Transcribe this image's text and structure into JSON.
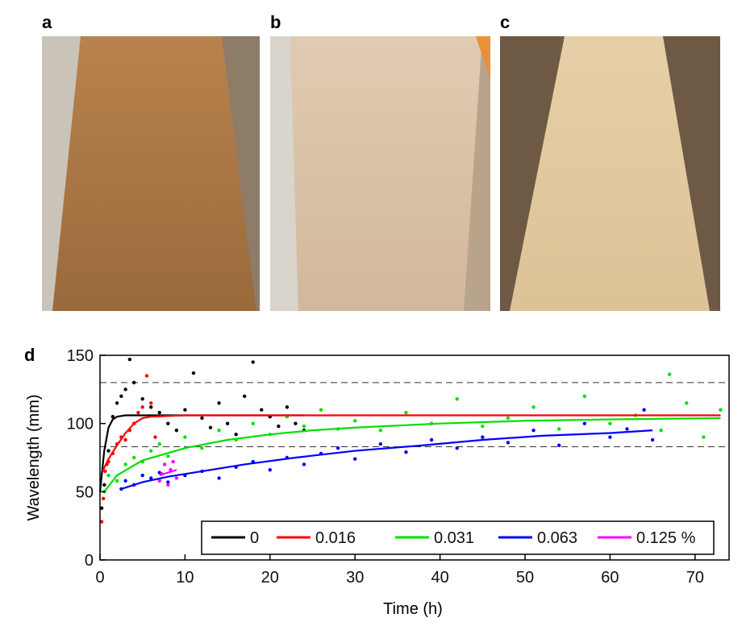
{
  "photos": [
    {
      "label": "a"
    },
    {
      "label": "b"
    },
    {
      "label": "c"
    }
  ],
  "chart_data": {
    "type": "scatter",
    "panel_label": "d",
    "xlabel": "Time (h)",
    "ylabel": "Wavelength (mm)",
    "xlim": [
      0,
      74
    ],
    "ylim": [
      0,
      150
    ],
    "xticks": [
      0,
      10,
      20,
      30,
      40,
      50,
      60,
      70
    ],
    "yticks": [
      0,
      50,
      100,
      150
    ],
    "hlines": [
      130,
      83
    ],
    "legend": "lower right",
    "series": [
      {
        "name": "0",
        "color": "#000000",
        "x": [
          0.2,
          0.5,
          1,
          1.5,
          2,
          2.5,
          3,
          3.5,
          4,
          5,
          6,
          7,
          8,
          9,
          10,
          11,
          12,
          13,
          14,
          15,
          16,
          17,
          18,
          19,
          20,
          21,
          22,
          23,
          24
        ],
        "values": [
          38,
          55,
          80,
          105,
          115,
          120,
          125,
          147,
          130,
          118,
          112,
          108,
          100,
          95,
          110,
          137,
          104,
          97,
          115,
          100,
          92,
          120,
          145,
          110,
          105,
          98,
          112,
          100,
          95
        ],
        "fit_x": [
          0,
          0.5,
          1,
          1.5,
          2,
          3,
          5,
          10,
          24
        ],
        "fit_values": [
          50,
          80,
          97,
          103,
          105,
          106,
          106,
          106,
          106
        ]
      },
      {
        "name": "0.016",
        "color": "#ff0000",
        "x": [
          0.2,
          0.4,
          0.6,
          0.8,
          1,
          1.5,
          2,
          2.5,
          3,
          3.5,
          4,
          4.5,
          5,
          5.5,
          6,
          6.5
        ],
        "values": [
          28,
          45,
          65,
          70,
          72,
          78,
          85,
          90,
          88,
          95,
          100,
          108,
          112,
          135,
          115,
          90
        ],
        "fit_x": [
          0.3,
          1,
          2,
          3,
          4,
          5,
          6,
          10,
          30,
          73
        ],
        "fit_values": [
          65,
          74,
          84,
          93,
          100,
          104,
          105,
          106,
          106,
          106
        ]
      },
      {
        "name": "0.031",
        "color": "#00e000",
        "x": [
          0.5,
          1,
          2,
          3,
          4,
          5,
          6,
          7,
          8,
          10,
          12,
          14,
          16,
          18,
          20,
          22,
          24,
          26,
          28,
          30,
          33,
          36,
          39,
          42,
          45,
          48,
          51,
          54,
          57,
          60,
          63,
          66,
          67,
          69,
          71,
          73
        ],
        "values": [
          50,
          62,
          58,
          70,
          75,
          72,
          80,
          85,
          76,
          90,
          82,
          95,
          88,
          100,
          92,
          105,
          98,
          110,
          96,
          102,
          95,
          108,
          100,
          118,
          98,
          104,
          112,
          96,
          120,
          100,
          106,
          95,
          136,
          115,
          90,
          110
        ],
        "fit_x": [
          0.5,
          2,
          5,
          10,
          15,
          20,
          25,
          30,
          40,
          50,
          60,
          73
        ],
        "fit_values": [
          50,
          62,
          73,
          82,
          88,
          92,
          95,
          97,
          100,
          102,
          103,
          104
        ]
      },
      {
        "name": "0.063",
        "color": "#0000ff",
        "x": [
          2.5,
          3,
          4,
          5,
          6,
          7,
          8,
          10,
          12,
          14,
          16,
          18,
          20,
          22,
          24,
          26,
          28,
          30,
          33,
          36,
          39,
          42,
          45,
          48,
          51,
          54,
          57,
          60,
          62,
          64,
          65
        ],
        "values": [
          52,
          58,
          55,
          62,
          60,
          64,
          57,
          62,
          65,
          60,
          68,
          72,
          66,
          75,
          70,
          78,
          82,
          74,
          85,
          79,
          88,
          82,
          90,
          86,
          95,
          84,
          100,
          90,
          96,
          110,
          88
        ],
        "fit_x": [
          2.5,
          5,
          8,
          12,
          17,
          23,
          30,
          38,
          45,
          52,
          60,
          65
        ],
        "fit_values": [
          52,
          57,
          61,
          65,
          70,
          75,
          80,
          84,
          88,
          91,
          93,
          95
        ]
      },
      {
        "name": "0.125 %",
        "color": "#ff00ff",
        "x": [
          7,
          7.3,
          7.6,
          8,
          8.3,
          8.6,
          9
        ],
        "values": [
          58,
          63,
          70,
          55,
          66,
          72,
          60
        ],
        "fit_x": [
          7,
          8,
          9
        ],
        "fit_values": [
          62,
          64,
          66
        ]
      }
    ]
  }
}
